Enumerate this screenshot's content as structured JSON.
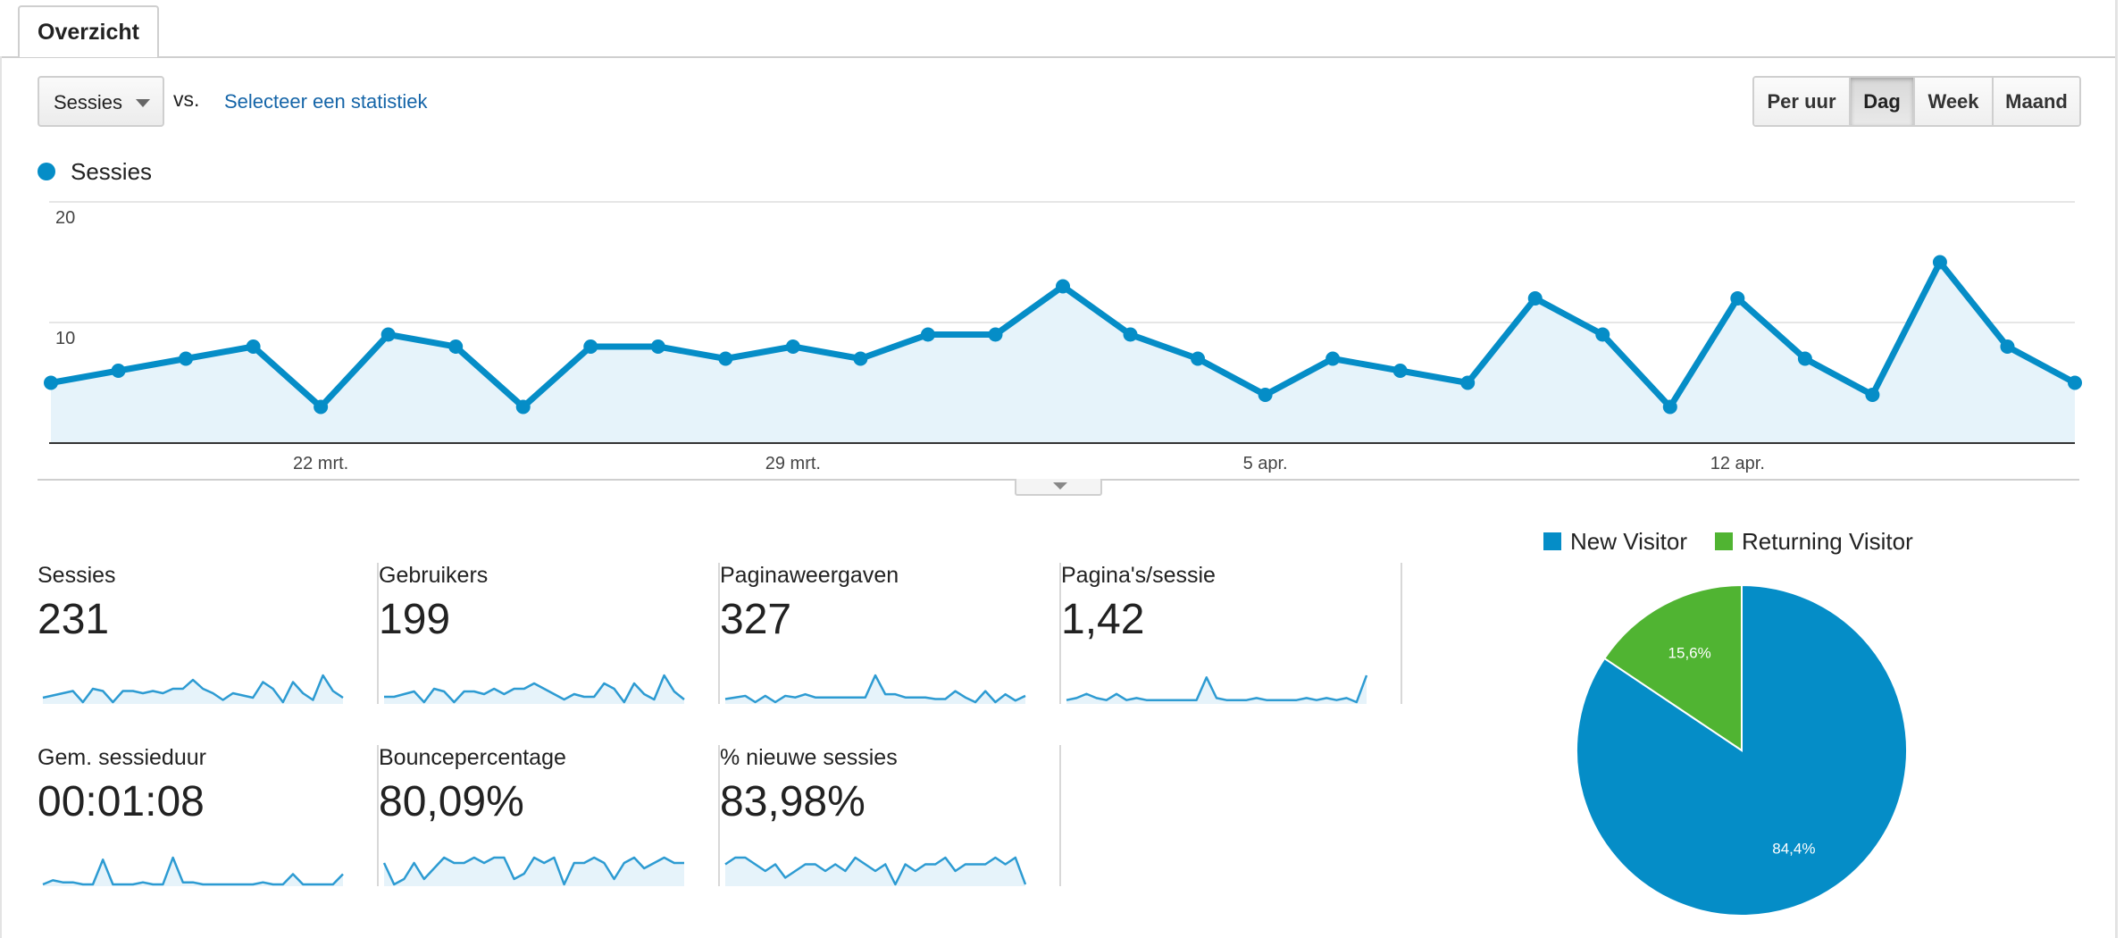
{
  "tabs": {
    "overview": "Overzicht"
  },
  "toolbar": {
    "metric_select": "Sessies",
    "vs_label": "vs.",
    "compare_link": "Selecteer een statistiek",
    "granularity": [
      "Per uur",
      "Dag",
      "Week",
      "Maand"
    ],
    "active_granularity": "Dag"
  },
  "colors": {
    "series": "#058dc7",
    "fill": "#e6f3fa",
    "new_visitor": "#058dc7",
    "returning_visitor": "#50b432"
  },
  "chart_data": [
    {
      "type": "line",
      "series": [
        {
          "name": "Sessies",
          "values": [
            5,
            6,
            7,
            8,
            3,
            9,
            8,
            3,
            8,
            8,
            7,
            8,
            7,
            9,
            9,
            13,
            9,
            7,
            4,
            7,
            6,
            5,
            12,
            9,
            3,
            12,
            7,
            4,
            15,
            8,
            5
          ]
        }
      ],
      "x": [
        "2015-03-18",
        "2015-03-19",
        "2015-03-20",
        "2015-03-21",
        "2015-03-22",
        "2015-03-23",
        "2015-03-24",
        "2015-03-25",
        "2015-03-26",
        "2015-03-27",
        "2015-03-28",
        "2015-03-29",
        "2015-03-30",
        "2015-03-31",
        "2015-04-01",
        "2015-04-02",
        "2015-04-03",
        "2015-04-04",
        "2015-04-05",
        "2015-04-06",
        "2015-04-07",
        "2015-04-08",
        "2015-04-09",
        "2015-04-10",
        "2015-04-11",
        "2015-04-12",
        "2015-04-13",
        "2015-04-14",
        "2015-04-15",
        "2015-04-16",
        "2015-04-17"
      ],
      "yticks": [
        {
          "value": 20,
          "label": "20"
        },
        {
          "value": 10,
          "label": "10"
        }
      ],
      "ylim": [
        0,
        20
      ],
      "xticks": [
        {
          "date": "2015-03-22",
          "label": "22 mrt."
        },
        {
          "date": "2015-03-29",
          "label": "29 mrt."
        },
        {
          "date": "2015-04-05",
          "label": "5 apr."
        },
        {
          "date": "2015-04-12",
          "label": "12 apr."
        }
      ],
      "grid": true
    },
    {
      "type": "pie",
      "labels": [
        "New Visitor",
        "Returning Visitor"
      ],
      "values": [
        84.4,
        15.6
      ],
      "value_labels": [
        "84,4%",
        "15,6%"
      ],
      "colors": [
        "#058dc7",
        "#50b432"
      ],
      "legend": "top"
    }
  ],
  "metrics": [
    {
      "label": "Sessies",
      "value": "231",
      "trend": [
        5,
        6,
        7,
        8,
        3,
        9,
        8,
        3,
        8,
        8,
        7,
        8,
        7,
        9,
        9,
        13,
        9,
        7,
        4,
        7,
        6,
        5,
        12,
        9,
        3,
        12,
        7,
        4,
        15,
        8,
        5
      ]
    },
    {
      "label": "Gebruikers",
      "value": "199",
      "trend": [
        5,
        5,
        6,
        7,
        3,
        8,
        7,
        3,
        7,
        7,
        6,
        8,
        6,
        8,
        8,
        10,
        8,
        6,
        4,
        6,
        5,
        5,
        10,
        8,
        3,
        10,
        6,
        4,
        13,
        7,
        4
      ]
    },
    {
      "label": "Paginaweergaven",
      "value": "327",
      "trend": [
        5,
        6,
        7,
        3,
        7,
        3,
        7,
        6,
        8,
        6,
        6,
        6,
        6,
        6,
        6,
        20,
        8,
        8,
        6,
        6,
        6,
        5,
        5,
        10,
        6,
        3,
        10,
        3,
        8,
        4,
        7
      ]
    },
    {
      "label": "Pagina's/sessie",
      "value": "1,42",
      "trend": [
        5,
        6,
        8,
        6,
        5,
        8,
        5,
        6,
        5,
        5,
        5,
        5,
        5,
        5,
        16,
        6,
        5,
        5,
        5,
        6,
        5,
        5,
        5,
        5,
        6,
        5,
        6,
        5,
        6,
        4,
        17
      ]
    },
    {
      "label": "Gem. sessieduur",
      "value": "00:01:08",
      "trend": [
        2,
        4,
        3,
        3,
        2,
        2,
        14,
        2,
        2,
        2,
        3,
        2,
        2,
        15,
        3,
        3,
        2,
        2,
        2,
        2,
        2,
        2,
        3,
        2,
        2,
        7,
        2,
        2,
        2,
        2,
        7
      ]
    },
    {
      "label": "Bouncepercentage",
      "value": "80,09%",
      "trend": [
        8,
        4,
        5,
        8,
        5,
        7,
        9,
        8,
        8,
        9,
        8,
        9,
        9,
        5,
        6,
        9,
        8,
        9,
        4,
        8,
        8,
        9,
        8,
        5,
        8,
        9,
        7,
        8,
        9,
        8,
        8
      ]
    },
    {
      "label": "% nieuwe sessies",
      "value": "83,98%",
      "trend": [
        8,
        9,
        9,
        8,
        7,
        8,
        6,
        7,
        8,
        8,
        7,
        8,
        7,
        9,
        8,
        7,
        8,
        5,
        8,
        7,
        8,
        8,
        9,
        7,
        8,
        8,
        8,
        9,
        8,
        9,
        5
      ]
    }
  ]
}
